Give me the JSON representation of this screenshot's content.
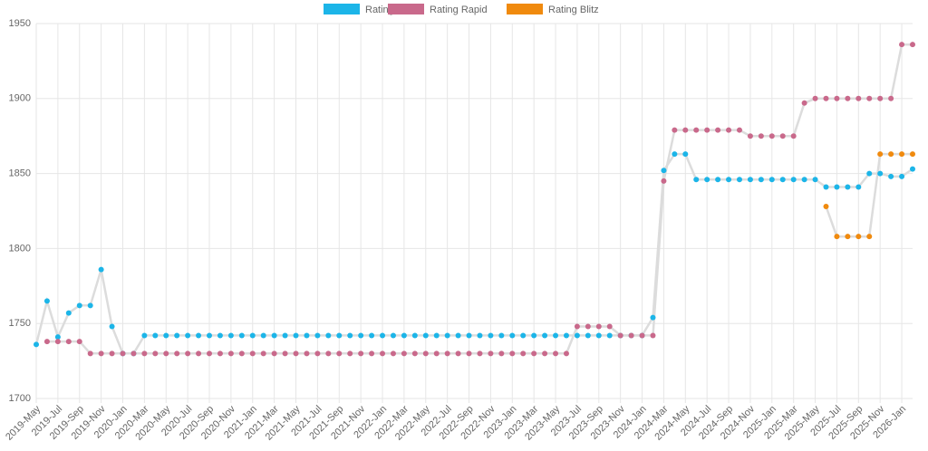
{
  "chart_data": {
    "type": "line",
    "categories": [
      "2019-May",
      null,
      "2019-Jul",
      null,
      "2019-Sep",
      null,
      "2019-Nov",
      null,
      "2020-Jan",
      null,
      "2020-Mar",
      null,
      "2020-May",
      null,
      "2020-Jul",
      null,
      "2020-Sep",
      null,
      "2020-Nov",
      null,
      "2021-Jan",
      null,
      "2021-Mar",
      null,
      "2021-May",
      null,
      "2021-Jul",
      null,
      "2021-Sep",
      null,
      "2021-Nov",
      null,
      "2022-Jan",
      null,
      "2022-Mar",
      null,
      "2022-May",
      null,
      "2022-Jul",
      null,
      "2022-Sep",
      null,
      "2022-Nov",
      null,
      "2023-Jan",
      null,
      "2023-Mar",
      null,
      "2023-May",
      null,
      "2023-Jul",
      null,
      "2023-Sep",
      null,
      "2023-Nov",
      null,
      "2024-Jan",
      null,
      "2024-Mar",
      null,
      "2024-May",
      null,
      "2024-Jul",
      null,
      "2024-Sep",
      null,
      "2024-Nov",
      null,
      "2025-Jan",
      null,
      "2025-Mar",
      null,
      "2025-May",
      null,
      "2025-Jul",
      null,
      "2025-Sep",
      null,
      "2025-Nov",
      null,
      "2026-Jan",
      null
    ],
    "series": [
      {
        "name": "Rating",
        "color": "#1cb5e8",
        "values": [
          1736,
          1765,
          1741,
          1757,
          1762,
          1762,
          1786,
          1748,
          1730,
          1730,
          1742,
          1742,
          1742,
          1742,
          1742,
          1742,
          1742,
          1742,
          1742,
          1742,
          1742,
          1742,
          1742,
          1742,
          1742,
          1742,
          1742,
          1742,
          1742,
          1742,
          1742,
          1742,
          1742,
          1742,
          1742,
          1742,
          1742,
          1742,
          1742,
          1742,
          1742,
          1742,
          1742,
          1742,
          1742,
          1742,
          1742,
          1742,
          1742,
          1742,
          1742,
          1742,
          1742,
          1742,
          1742,
          1742,
          1742,
          1754,
          1852,
          1863,
          1863,
          1846,
          1846,
          1846,
          1846,
          1846,
          1846,
          1846,
          1846,
          1846,
          1846,
          1846,
          1846,
          1841,
          1841,
          1841,
          1841,
          1850,
          1850,
          1848,
          1848,
          1853
        ]
      },
      {
        "name": "Rating Rapid",
        "color": "#c9698b",
        "values": [
          null,
          1738,
          1738,
          1738,
          1738,
          1730,
          1730,
          1730,
          1730,
          1730,
          1730,
          1730,
          1730,
          1730,
          1730,
          1730,
          1730,
          1730,
          1730,
          1730,
          1730,
          1730,
          1730,
          1730,
          1730,
          1730,
          1730,
          1730,
          1730,
          1730,
          1730,
          1730,
          1730,
          1730,
          1730,
          1730,
          1730,
          1730,
          1730,
          1730,
          1730,
          1730,
          1730,
          1730,
          1730,
          1730,
          1730,
          1730,
          1730,
          1730,
          1748,
          1748,
          1748,
          1748,
          1742,
          1742,
          1742,
          1742,
          1845,
          1879,
          1879,
          1879,
          1879,
          1879,
          1879,
          1879,
          1875,
          1875,
          1875,
          1875,
          1875,
          1897,
          1900,
          1900,
          1900,
          1900,
          1900,
          1900,
          1900,
          1900,
          1936,
          1936
        ]
      },
      {
        "name": "Rating Blitz",
        "color": "#f08a0e",
        "values": [
          null,
          null,
          null,
          null,
          null,
          null,
          null,
          null,
          null,
          null,
          null,
          null,
          null,
          null,
          null,
          null,
          null,
          null,
          null,
          null,
          null,
          null,
          null,
          null,
          null,
          null,
          null,
          null,
          null,
          null,
          null,
          null,
          null,
          null,
          null,
          null,
          null,
          null,
          null,
          null,
          null,
          null,
          null,
          null,
          null,
          null,
          null,
          null,
          null,
          null,
          null,
          null,
          null,
          null,
          null,
          null,
          null,
          null,
          null,
          null,
          null,
          null,
          null,
          null,
          null,
          null,
          null,
          null,
          null,
          null,
          null,
          null,
          null,
          1828,
          1808,
          1808,
          1808,
          1808,
          1863,
          1863,
          1863,
          1863
        ]
      }
    ],
    "ylim": [
      1700,
      1950
    ],
    "yticks": [
      1700,
      1750,
      1800,
      1850,
      1900,
      1950
    ],
    "grid": true,
    "legend": "top"
  }
}
